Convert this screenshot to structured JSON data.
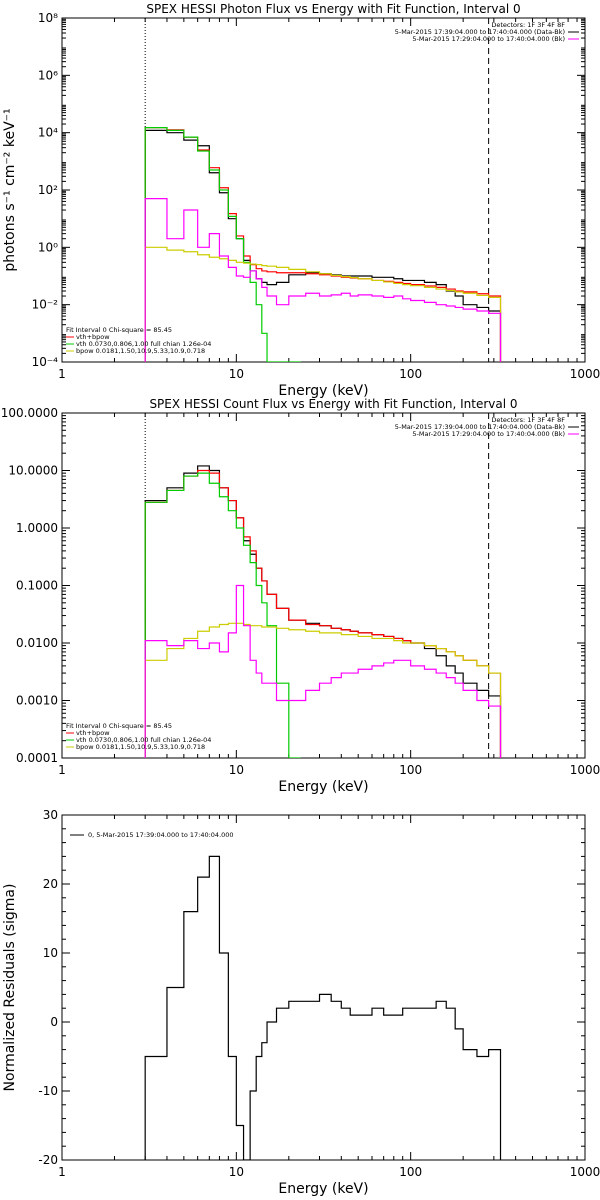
{
  "colors": {
    "data": "#000000",
    "total": "#ff0000",
    "vth": "#00cc00",
    "bpow": "#cccc00",
    "background": "#ff00ff"
  },
  "chart_data": [
    {
      "type": "line",
      "title": "SPEX HESSI Photon Flux vs Energy with Fit Function, Interval 0",
      "xlabel": "Energy (keV)",
      "ylabel": "photons s⁻¹ cm⁻² keV⁻¹",
      "xscale": "log",
      "yscale": "log",
      "xlim": [
        1,
        1000
      ],
      "ylim": [
        0.0001,
        100000000
      ],
      "xticks": [
        "1",
        "10",
        "100",
        "1000"
      ],
      "yticks": [
        "10⁻⁴",
        "10⁻²",
        "10⁰",
        "10²",
        "10⁴",
        "10⁶",
        "10⁸"
      ],
      "vlines": [
        3,
        280
      ],
      "legend_top": [
        "Detectors: 1F 3F 4F 8F",
        "5-Mar-2015 17:39:04.000 to 17:40:04.000 (Data-Bk)",
        "5-Mar-2015 17:29:04.000 to 17:40:04.000 (Bk)"
      ],
      "legend_bottom": [
        "Fit Interval 0   Chi-square = 85.45",
        "vth+bpow",
        "vth 0.0730,0.806,1.00  full chian 1.26e-04",
        "bpow 0.0181,1.50,10.9,5.33,10.9,0.718"
      ],
      "series": [
        {
          "name": "Data-Bk",
          "color_key": "data",
          "x": [
            3,
            4,
            5,
            6,
            7,
            8,
            9,
            10,
            11,
            12,
            13,
            14,
            15,
            17,
            20,
            25,
            30,
            35,
            40,
            45,
            50,
            60,
            70,
            80,
            90,
            100,
            120,
            140,
            160,
            180,
            200,
            240,
            280
          ],
          "y": [
            12000,
            10000,
            5500,
            3500,
            400,
            80,
            10,
            2,
            0.35,
            0.15,
            0.08,
            0.06,
            0.05,
            0.06,
            0.11,
            0.13,
            0.12,
            0.11,
            0.1,
            0.1,
            0.1,
            0.09,
            0.09,
            0.08,
            0.07,
            0.07,
            0.06,
            0.05,
            0.03,
            0.02,
            0.01,
            0.008,
            0.006
          ]
        },
        {
          "name": "vth+bpow",
          "color_key": "total",
          "x": [
            3,
            4,
            5,
            6,
            7,
            8,
            9,
            10,
            11,
            12,
            13,
            14,
            15,
            17,
            20,
            25,
            30,
            35,
            40,
            45,
            50,
            60,
            70,
            80,
            90,
            100,
            120,
            140,
            160,
            180,
            200,
            240,
            280
          ],
          "y": [
            15000,
            12500,
            7000,
            2500,
            600,
            120,
            15,
            2.5,
            0.5,
            0.25,
            0.18,
            0.15,
            0.14,
            0.13,
            0.13,
            0.12,
            0.11,
            0.1,
            0.09,
            0.085,
            0.08,
            0.07,
            0.065,
            0.06,
            0.055,
            0.05,
            0.045,
            0.04,
            0.035,
            0.03,
            0.028,
            0.024,
            0.02
          ]
        },
        {
          "name": "vth",
          "color_key": "vth",
          "x": [
            3,
            4,
            5,
            6,
            7,
            8,
            9,
            10,
            11,
            12,
            13,
            14,
            15,
            17,
            20
          ],
          "y": [
            15000,
            12000,
            7000,
            2300,
            500,
            100,
            12,
            2,
            0.3,
            0.06,
            0.01,
            0.001,
            0.0001,
            0.0001,
            0.0001
          ]
        },
        {
          "name": "bpow",
          "color_key": "bpow",
          "x": [
            3,
            4,
            5,
            6,
            7,
            8,
            9,
            10,
            11,
            12,
            13,
            14,
            15,
            17,
            20,
            25,
            30,
            35,
            40,
            45,
            50,
            60,
            70,
            80,
            90,
            100,
            120,
            140,
            160,
            180,
            200,
            240,
            280
          ],
          "y": [
            1,
            0.8,
            0.7,
            0.55,
            0.45,
            0.4,
            0.35,
            0.3,
            0.28,
            0.26,
            0.25,
            0.23,
            0.22,
            0.2,
            0.17,
            0.14,
            0.12,
            0.105,
            0.095,
            0.088,
            0.08,
            0.07,
            0.062,
            0.055,
            0.05,
            0.046,
            0.04,
            0.035,
            0.031,
            0.028,
            0.025,
            0.021,
            0.018
          ]
        },
        {
          "name": "Bk",
          "color_key": "background",
          "x": [
            3,
            4,
            5,
            6,
            7,
            8,
            9,
            10,
            11,
            12,
            13,
            14,
            15,
            17,
            20,
            25,
            30,
            35,
            40,
            45,
            50,
            60,
            70,
            80,
            90,
            100,
            120,
            140,
            160,
            180,
            200,
            240,
            280
          ],
          "y": [
            50,
            2,
            20,
            1,
            3,
            0.5,
            0.2,
            0.1,
            0.09,
            0.15,
            0.08,
            0.04,
            0.02,
            0.01,
            0.02,
            0.025,
            0.02,
            0.022,
            0.025,
            0.02,
            0.022,
            0.02,
            0.018,
            0.02,
            0.016,
            0.014,
            0.012,
            0.01,
            0.009,
            0.008,
            0.007,
            0.006,
            0.005
          ]
        }
      ]
    },
    {
      "type": "line",
      "title": "SPEX HESSI Count Flux vs Energy with Fit Function, Interval 0",
      "xlabel": "Energy (keV)",
      "ylabel": "",
      "xscale": "log",
      "yscale": "log",
      "xlim": [
        1,
        1000
      ],
      "ylim": [
        0.0001,
        100
      ],
      "xticks": [
        "1",
        "10",
        "100",
        "1000"
      ],
      "yticks": [
        "0.0001",
        "0.0010",
        "0.0100",
        "0.1000",
        "1.0000",
        "10.0000",
        "100.0000"
      ],
      "vlines": [
        3,
        280
      ],
      "legend_top": [
        "Detectors: 1F 3F 4F 8F",
        "5-Mar-2015 17:39:04.000 to 17:40:04.000 (Data-Bk)",
        "5-Mar-2015 17:29:04.000 to 17:40:04.000 (Bk)"
      ],
      "legend_bottom": [
        "Fit Interval 0   Chi-square = 85.45",
        "vth+bpow",
        "vth 0.0730,0.806,1.00  full chian 1.26e-04",
        "bpow 0.0181,1.50,10.9,5.33,10.9,0.718"
      ],
      "series": [
        {
          "name": "Data-Bk",
          "color_key": "data",
          "x": [
            3,
            4,
            5,
            6,
            7,
            8,
            9,
            10,
            11,
            12,
            13,
            14,
            15,
            17,
            20,
            25,
            30,
            35,
            40,
            45,
            50,
            60,
            70,
            80,
            90,
            100,
            120,
            140,
            160,
            180,
            200,
            240,
            280
          ],
          "y": [
            3,
            5,
            9,
            12,
            10,
            5,
            3,
            1.5,
            0.6,
            0.35,
            0.2,
            0.12,
            0.07,
            0.04,
            0.025,
            0.022,
            0.02,
            0.018,
            0.017,
            0.016,
            0.015,
            0.014,
            0.013,
            0.012,
            0.011,
            0.01,
            0.008,
            0.006,
            0.004,
            0.003,
            0.002,
            0.0015,
            0.0012
          ]
        },
        {
          "name": "vth+bpow",
          "color_key": "total",
          "x": [
            3,
            4,
            5,
            6,
            7,
            8,
            9,
            10,
            11,
            12,
            13,
            14,
            15,
            17,
            20,
            25,
            30,
            35,
            40,
            45,
            50,
            60,
            70,
            80,
            90,
            100,
            120,
            140,
            160,
            180,
            200,
            240,
            280
          ],
          "y": [
            2.8,
            4.5,
            8,
            10,
            9,
            5,
            3,
            1.5,
            0.7,
            0.4,
            0.2,
            0.12,
            0.07,
            0.04,
            0.025,
            0.021,
            0.02,
            0.018,
            0.017,
            0.016,
            0.015,
            0.014,
            0.013,
            0.012,
            0.011,
            0.01,
            0.009,
            0.008,
            0.007,
            0.006,
            0.005,
            0.004,
            0.003
          ]
        },
        {
          "name": "vth",
          "color_key": "vth",
          "x": [
            3,
            4,
            5,
            6,
            7,
            8,
            9,
            10,
            11,
            12,
            13,
            14,
            15,
            17,
            20
          ],
          "y": [
            2.8,
            4.5,
            8,
            9,
            6,
            3.5,
            2,
            1,
            0.5,
            0.25,
            0.1,
            0.05,
            0.02,
            0.002,
            0.0001
          ]
        },
        {
          "name": "bpow",
          "color_key": "bpow",
          "x": [
            3,
            4,
            5,
            6,
            7,
            8,
            9,
            10,
            11,
            12,
            13,
            14,
            15,
            17,
            20,
            25,
            30,
            35,
            40,
            45,
            50,
            60,
            70,
            80,
            90,
            100,
            120,
            140,
            160,
            180,
            200,
            240,
            280
          ],
          "y": [
            0.005,
            0.008,
            0.012,
            0.016,
            0.019,
            0.021,
            0.022,
            0.022,
            0.021,
            0.02,
            0.02,
            0.019,
            0.019,
            0.018,
            0.017,
            0.016,
            0.015,
            0.015,
            0.014,
            0.014,
            0.013,
            0.012,
            0.012,
            0.011,
            0.01,
            0.01,
            0.009,
            0.008,
            0.007,
            0.006,
            0.005,
            0.004,
            0.003
          ]
        },
        {
          "name": "Bk",
          "color_key": "background",
          "x": [
            3,
            4,
            5,
            6,
            7,
            8,
            9,
            10,
            11,
            12,
            13,
            14,
            15,
            17,
            20,
            25,
            30,
            35,
            40,
            45,
            50,
            60,
            70,
            80,
            90,
            100,
            120,
            140,
            160,
            180,
            200,
            240,
            280
          ],
          "y": [
            0.011,
            0.009,
            0.011,
            0.008,
            0.01,
            0.007,
            0.015,
            0.1,
            0.02,
            0.005,
            0.003,
            0.002,
            0.002,
            0.001,
            0.001,
            0.0015,
            0.002,
            0.0025,
            0.003,
            0.003,
            0.0035,
            0.004,
            0.0045,
            0.005,
            0.005,
            0.004,
            0.0035,
            0.003,
            0.0025,
            0.002,
            0.0015,
            0.001,
            0.0008
          ]
        }
      ]
    },
    {
      "type": "line",
      "title": "",
      "xlabel": "Energy (keV)",
      "ylabel": "Normalized Residuals (sigma)",
      "xscale": "log",
      "yscale": "linear",
      "xlim": [
        1,
        1000
      ],
      "ylim": [
        -20,
        30
      ],
      "xticks": [
        "1",
        "10",
        "100",
        "1000"
      ],
      "yticks": [
        "-20",
        "-10",
        "0",
        "10",
        "20",
        "30"
      ],
      "legend_top": [
        "0, 5-Mar-2015 17:39:04.000 to 17:40:04.000"
      ],
      "series": [
        {
          "name": "0, 5-Mar-2015 17:39:04.000 to 17:40:04.000",
          "color_key": "data",
          "x": [
            3,
            4,
            5,
            6,
            7,
            8,
            9,
            10,
            11,
            12,
            13,
            14,
            15,
            17,
            20,
            25,
            30,
            35,
            40,
            45,
            50,
            60,
            70,
            80,
            90,
            100,
            120,
            140,
            160,
            180,
            200,
            240,
            280
          ],
          "y": [
            -5,
            5,
            16,
            21,
            24,
            10,
            -5,
            -15,
            -20,
            -10,
            -5,
            -3,
            0,
            2,
            3,
            3,
            4,
            3,
            2,
            1,
            1,
            2,
            1,
            1,
            2,
            2,
            2,
            3,
            2,
            -1,
            -4,
            -5,
            -4
          ]
        }
      ]
    }
  ]
}
